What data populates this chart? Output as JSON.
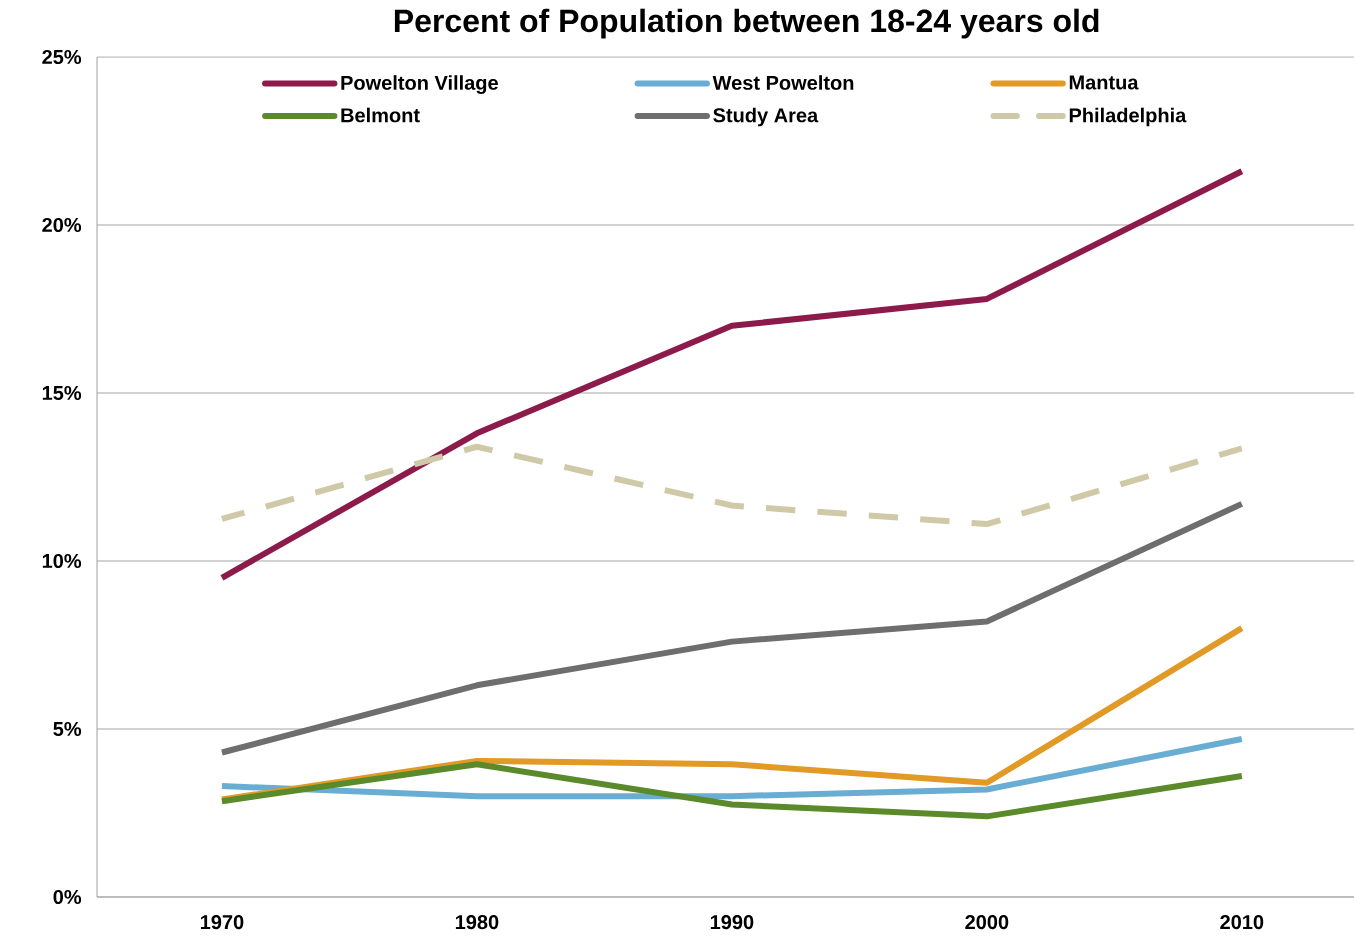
{
  "chart_data": {
    "type": "line",
    "title": "Percent of Population between 18-24 years old",
    "categories": [
      "1970",
      "1980",
      "1990",
      "2000",
      "2010"
    ],
    "series": [
      {
        "name": "Powelton Village",
        "color": "#8c1a4b",
        "values": [
          9.5,
          13.8,
          17.0,
          17.8,
          21.6
        ]
      },
      {
        "name": "West Powelton",
        "color": "#6aadd2",
        "values": [
          3.3,
          3.0,
          3.0,
          3.2,
          4.7
        ]
      },
      {
        "name": "Mantua",
        "color": "#e09a25",
        "values": [
          2.9,
          4.05,
          3.95,
          3.4,
          8.0
        ]
      },
      {
        "name": "Belmont",
        "color": "#5b8a2a",
        "values": [
          2.85,
          3.95,
          2.75,
          2.4,
          3.6
        ]
      },
      {
        "name": "Study Area",
        "color": "#6e6e6e",
        "values": [
          4.3,
          6.3,
          7.6,
          8.2,
          11.7
        ]
      },
      {
        "name": "Philadelphia",
        "color": "#cfc9a8",
        "line_style": "dashed",
        "values": [
          11.25,
          13.4,
          11.65,
          11.1,
          13.35
        ]
      }
    ],
    "ylim": [
      0,
      25
    ],
    "yticks": [
      {
        "value": 0,
        "label": "0%"
      },
      {
        "value": 5,
        "label": "5%"
      },
      {
        "value": 10,
        "label": "10%"
      },
      {
        "value": 15,
        "label": "15%"
      },
      {
        "value": 20,
        "label": "20%"
      },
      {
        "value": 25,
        "label": "25%"
      }
    ],
    "grid": "y",
    "legend": "top",
    "line_style": "solid",
    "marker": "none"
  }
}
